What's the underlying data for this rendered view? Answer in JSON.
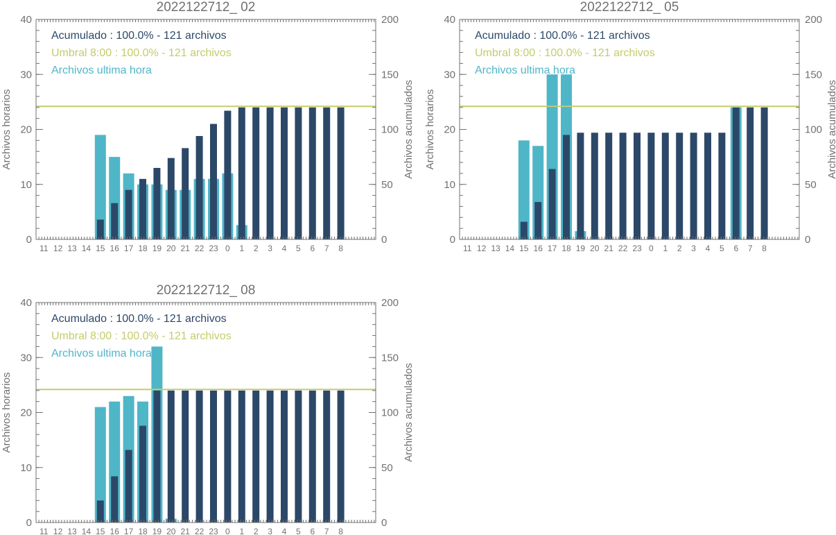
{
  "colors": {
    "hourly": "#4fb6c8",
    "cumulative": "#2c4868",
    "threshold": "#c4cc6a",
    "axis": "#707070",
    "text": "#707070"
  },
  "chart_data": [
    {
      "type": "bar",
      "title": "2022122712_ 02",
      "ylabel": "Archivos horarios",
      "y2label": "Archivos acumulados",
      "ylim": [
        0,
        40
      ],
      "y2lim": [
        0,
        200
      ],
      "yticks": [
        "0",
        "10",
        "20",
        "30",
        "40"
      ],
      "y2ticks": [
        "0",
        "50",
        "100",
        "150",
        "200"
      ],
      "categories": [
        "11",
        "12",
        "13",
        "14",
        "15",
        "16",
        "17",
        "18",
        "19",
        "20",
        "21",
        "22",
        "23",
        "0",
        "1",
        "2",
        "3",
        "4",
        "5",
        "6",
        "7",
        "8"
      ],
      "legend": [
        {
          "text": "Acumulado : 100.0% - 121 archivos",
          "series": "cumulative"
        },
        {
          "text": "Umbral 8:00 : 100.0% - 121 archivos",
          "series": "threshold"
        },
        {
          "text": "Archivos ultima hora",
          "series": "hourly"
        }
      ],
      "threshold": 121,
      "series": [
        {
          "key": "hourly",
          "axis": "left",
          "values": [
            0,
            0,
            0,
            0,
            19,
            15,
            12,
            10,
            10,
            9,
            9,
            11,
            11,
            12,
            2.6,
            0,
            0,
            0,
            0,
            0,
            0,
            0
          ]
        },
        {
          "key": "cumulative",
          "axis": "right",
          "values": [
            0,
            0,
            0,
            0,
            18,
            33,
            45,
            55,
            65,
            74,
            83,
            94,
            105,
            117,
            120,
            120,
            120,
            120,
            120,
            120,
            120,
            120
          ]
        }
      ]
    },
    {
      "type": "bar",
      "title": "2022122712_ 05",
      "ylabel": "Archivos horarios",
      "y2label": "Archivos acumulados",
      "ylim": [
        0,
        40
      ],
      "y2lim": [
        0,
        200
      ],
      "yticks": [
        "0",
        "10",
        "20",
        "30",
        "40"
      ],
      "y2ticks": [
        "0",
        "50",
        "100",
        "150",
        "200"
      ],
      "categories": [
        "11",
        "12",
        "13",
        "14",
        "15",
        "16",
        "17",
        "18",
        "19",
        "20",
        "21",
        "22",
        "23",
        "0",
        "1",
        "2",
        "3",
        "4",
        "5",
        "6",
        "7",
        "8"
      ],
      "legend": [
        {
          "text": "Acumulado : 100.0% - 121 archivos",
          "series": "cumulative"
        },
        {
          "text": "Umbral 8:00 : 100.0% - 121 archivos",
          "series": "threshold"
        },
        {
          "text": "Archivos ultima hora",
          "series": "hourly"
        }
      ],
      "threshold": 121,
      "series": [
        {
          "key": "hourly",
          "axis": "left",
          "values": [
            0,
            0,
            0,
            0,
            18,
            17,
            30,
            30,
            1.5,
            0,
            0,
            0,
            0,
            0,
            0,
            0,
            0,
            0,
            0,
            24,
            0,
            0
          ]
        },
        {
          "key": "cumulative",
          "axis": "right",
          "values": [
            0,
            0,
            0,
            0,
            16,
            34,
            64,
            95,
            97,
            97,
            97,
            97,
            97,
            97,
            97,
            97,
            97,
            97,
            97,
            120,
            120,
            120
          ]
        }
      ]
    },
    {
      "type": "bar",
      "title": "2022122712_ 08",
      "ylabel": "Archivos horarios",
      "y2label": "Archivos acumulados",
      "ylim": [
        0,
        40
      ],
      "y2lim": [
        0,
        200
      ],
      "yticks": [
        "0",
        "10",
        "20",
        "30",
        "40"
      ],
      "y2ticks": [
        "0",
        "50",
        "100",
        "150",
        "200"
      ],
      "categories": [
        "11",
        "12",
        "13",
        "14",
        "15",
        "16",
        "17",
        "18",
        "19",
        "20",
        "21",
        "22",
        "23",
        "0",
        "1",
        "2",
        "3",
        "4",
        "5",
        "6",
        "7",
        "8"
      ],
      "legend": [
        {
          "text": "Acumulado : 100.0% - 121 archivos",
          "series": "cumulative"
        },
        {
          "text": "Umbral 8:00 : 100.0% - 121 archivos",
          "series": "threshold"
        },
        {
          "text": "Archivos ultima hora",
          "series": "hourly"
        }
      ],
      "threshold": 121,
      "series": [
        {
          "key": "hourly",
          "axis": "left",
          "values": [
            0,
            0,
            0,
            0,
            21,
            22,
            23,
            22,
            32,
            0.7,
            0,
            0,
            0,
            0,
            0,
            0,
            0,
            0,
            0,
            0,
            0,
            0
          ]
        },
        {
          "key": "cumulative",
          "axis": "right",
          "values": [
            0,
            0,
            0,
            0,
            20,
            42,
            66,
            88,
            120,
            120,
            120,
            120,
            120,
            120,
            120,
            120,
            120,
            120,
            120,
            120,
            120,
            120
          ]
        }
      ]
    }
  ]
}
